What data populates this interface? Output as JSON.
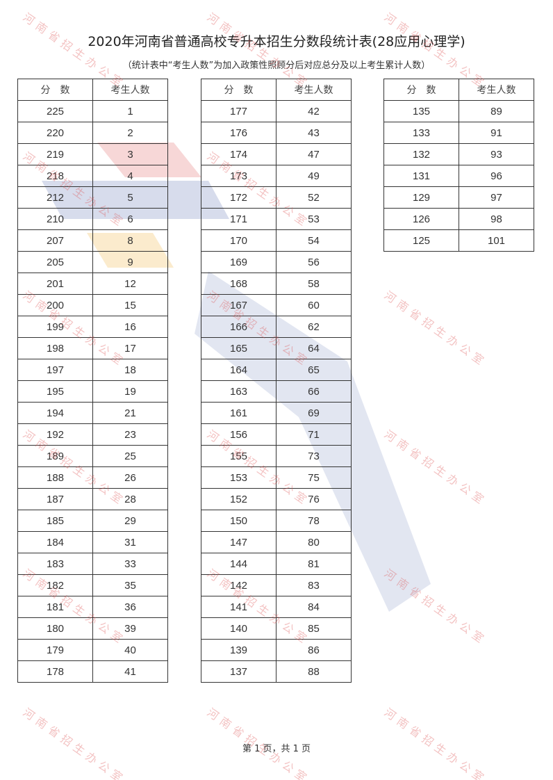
{
  "header": {
    "title": "2020年河南省普通高校专升本招生分数段统计表(28应用心理学)",
    "subtitle": "（统计表中“考生人数”为加入政策性照顾分后对应总分及以上考生累计人数）"
  },
  "columns": [
    "分　数",
    "考生人数"
  ],
  "tables": [
    {
      "rows": [
        [
          "225",
          "1"
        ],
        [
          "220",
          "2"
        ],
        [
          "219",
          "3"
        ],
        [
          "218",
          "4"
        ],
        [
          "212",
          "5"
        ],
        [
          "210",
          "6"
        ],
        [
          "207",
          "8"
        ],
        [
          "205",
          "9"
        ],
        [
          "201",
          "12"
        ],
        [
          "200",
          "15"
        ],
        [
          "199",
          "16"
        ],
        [
          "198",
          "17"
        ],
        [
          "197",
          "18"
        ],
        [
          "195",
          "19"
        ],
        [
          "194",
          "21"
        ],
        [
          "192",
          "23"
        ],
        [
          "189",
          "25"
        ],
        [
          "188",
          "26"
        ],
        [
          "187",
          "28"
        ],
        [
          "185",
          "29"
        ],
        [
          "184",
          "31"
        ],
        [
          "183",
          "33"
        ],
        [
          "182",
          "35"
        ],
        [
          "181",
          "36"
        ],
        [
          "180",
          "39"
        ],
        [
          "179",
          "40"
        ],
        [
          "178",
          "41"
        ]
      ]
    },
    {
      "rows": [
        [
          "177",
          "42"
        ],
        [
          "176",
          "43"
        ],
        [
          "174",
          "47"
        ],
        [
          "173",
          "49"
        ],
        [
          "172",
          "52"
        ],
        [
          "171",
          "53"
        ],
        [
          "170",
          "54"
        ],
        [
          "169",
          "56"
        ],
        [
          "168",
          "58"
        ],
        [
          "167",
          "60"
        ],
        [
          "166",
          "62"
        ],
        [
          "165",
          "64"
        ],
        [
          "164",
          "65"
        ],
        [
          "163",
          "66"
        ],
        [
          "161",
          "69"
        ],
        [
          "156",
          "71"
        ],
        [
          "155",
          "73"
        ],
        [
          "153",
          "75"
        ],
        [
          "152",
          "76"
        ],
        [
          "150",
          "78"
        ],
        [
          "147",
          "80"
        ],
        [
          "144",
          "81"
        ],
        [
          "142",
          "83"
        ],
        [
          "141",
          "84"
        ],
        [
          "140",
          "85"
        ],
        [
          "139",
          "86"
        ],
        [
          "137",
          "88"
        ]
      ]
    },
    {
      "rows": [
        [
          "135",
          "89"
        ],
        [
          "133",
          "91"
        ],
        [
          "132",
          "93"
        ],
        [
          "131",
          "96"
        ],
        [
          "129",
          "97"
        ],
        [
          "126",
          "98"
        ],
        [
          "125",
          "101"
        ]
      ]
    }
  ],
  "footer": "第 1 页，共 1 页",
  "watermark": "河南省招生办公室",
  "colors": {
    "watermark": "#dc5050",
    "logo_red": "#e8a0a0",
    "logo_blue": "#9aa6cc",
    "logo_yellow": "#f5d79a"
  }
}
